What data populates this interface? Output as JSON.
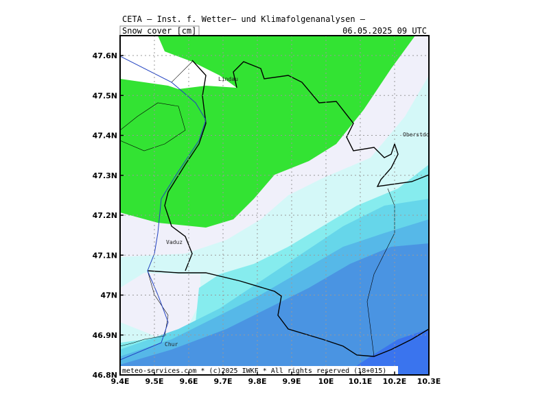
{
  "header": {
    "title": "CETA — Inst. f. Wetter— und Klimafolgenanalysen —",
    "variable": "Snow_cover [cm]",
    "datetime": "06.05.2025 09 UTC"
  },
  "axes": {
    "xticks": [
      "9.4E",
      "9.5E",
      "9.6E",
      "9.7E",
      "9.8E",
      "9.9E",
      "10E",
      "10.1E",
      "10.2E",
      "10.3E"
    ],
    "yticks": [
      "47.6N",
      "47.5N",
      "47.4N",
      "47.3N",
      "47.2N",
      "47.1N",
      "47N",
      "46.9N",
      "46.8N"
    ]
  },
  "places": [
    "Lindau",
    "Oberstdorf",
    "Vaduz",
    "Chur"
  ],
  "footer": "meteo-services.com * (c)2025 IWKF * All rights reserved (18+015)"
}
